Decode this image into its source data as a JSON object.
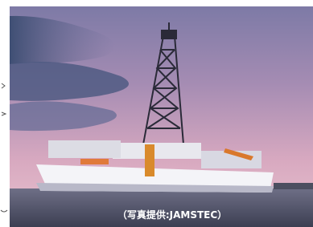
{
  "photo": {
    "caption": "（写真提供:JAMSTEC）"
  }
}
